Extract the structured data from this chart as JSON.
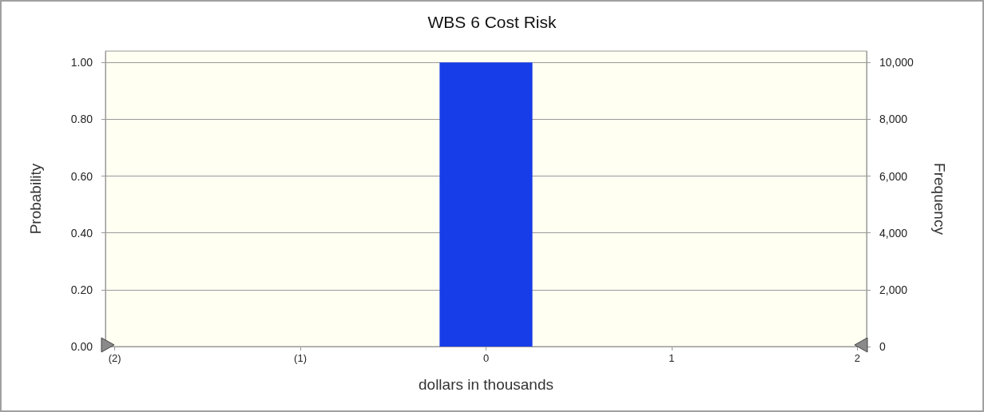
{
  "chart_data": {
    "type": "histogram",
    "title": "WBS 6 Cost Risk",
    "xlabel": "dollars in thousands",
    "ylabel": "Probability",
    "y2label": "Frequency",
    "bins": [
      -0.25,
      0.25
    ],
    "values": [
      1.0
    ],
    "color": "#173de9",
    "xlim": [
      -2.05,
      2.05
    ],
    "xticks": [
      {
        "value": -2,
        "label": "(2)"
      },
      {
        "value": -1,
        "label": "(1)"
      },
      0,
      1,
      2
    ],
    "ylim": [
      0,
      1.04
    ],
    "yticks": [
      {
        "value": 0,
        "label": "0.00"
      },
      {
        "value": 0.2,
        "label": "0.20"
      },
      {
        "value": 0.4,
        "label": "0.40"
      },
      {
        "value": 0.6,
        "label": "0.60"
      },
      {
        "value": 0.8,
        "label": "0.80"
      },
      {
        "value": 1,
        "label": "1.00"
      }
    ],
    "y2lim": [
      0,
      10400
    ],
    "y2ticks": [
      0,
      {
        "value": 2000,
        "label": "2,000"
      },
      {
        "value": 4000,
        "label": "4,000"
      },
      {
        "value": 6000,
        "label": "6,000"
      },
      {
        "value": 8000,
        "label": "8,000"
      },
      {
        "value": 10000,
        "label": "10,000"
      }
    ],
    "grid": "y"
  }
}
